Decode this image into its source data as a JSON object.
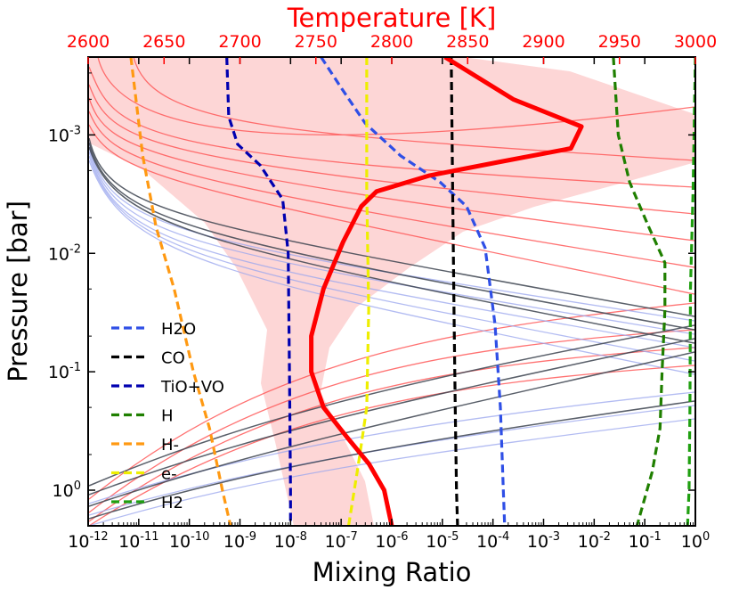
{
  "chart_data": {
    "type": "line",
    "title": "",
    "xlabel": "Mixing Ratio",
    "ylabel": "Pressure [bar]",
    "top_xlabel": "Temperature [K]",
    "xscale": "log",
    "yscale": "log",
    "y_inverted": true,
    "xlim": [
      1e-12,
      1
    ],
    "ylim": [
      2.0,
      0.00022
    ],
    "top_xlim": [
      2600,
      3000
    ],
    "x_ticks": [
      {
        "v": 1e-12,
        "exp": "-12"
      },
      {
        "v": 1e-11,
        "exp": "-11"
      },
      {
        "v": 1e-10,
        "exp": "-10"
      },
      {
        "v": 1e-09,
        "exp": "-9"
      },
      {
        "v": 1e-08,
        "exp": "-8"
      },
      {
        "v": 1e-07,
        "exp": "-7"
      },
      {
        "v": 1e-06,
        "exp": "-6"
      },
      {
        "v": 1e-05,
        "exp": "-5"
      },
      {
        "v": 0.0001,
        "exp": "-4"
      },
      {
        "v": 0.001,
        "exp": "-3"
      },
      {
        "v": 0.01,
        "exp": "-2"
      },
      {
        "v": 0.1,
        "exp": "-1"
      },
      {
        "v": 1,
        "exp": "0"
      }
    ],
    "y_ticks": [
      {
        "v": 0.001,
        "exp": "-3"
      },
      {
        "v": 0.01,
        "exp": "-2"
      },
      {
        "v": 0.1,
        "exp": "-1"
      },
      {
        "v": 1,
        "exp": "0"
      }
    ],
    "top_ticks": [
      "2600",
      "2650",
      "2700",
      "2750",
      "2800",
      "2850",
      "2900",
      "2950",
      "3000"
    ],
    "legend_position": "lower-left",
    "colors": {
      "temperature": "#ff0000",
      "uncertainty_band": "#fdd6d6",
      "H2O": "#2f4fe6",
      "CO": "#000000",
      "TiO+VO": "#0000b0",
      "H": "#1f7f00",
      "H-": "#ff9912",
      "e-": "#eeee00",
      "H2": "#1f9f10",
      "red_profiles": "#ff5a5a",
      "dark_profiles": "#3d4450",
      "blue_profiles": "#9aa6ee"
    },
    "series": [
      {
        "name": "H2O",
        "style": "dashed",
        "points": [
          [
            4e-08,
            0.00022
          ],
          [
            1e-07,
            0.0004
          ],
          [
            3e-07,
            0.0008
          ],
          [
            1.5e-06,
            0.0015
          ],
          [
            9e-06,
            0.0025
          ],
          [
            3e-05,
            0.004
          ],
          [
            7e-05,
            0.009
          ],
          [
            0.00011,
            0.04
          ],
          [
            0.00014,
            0.2
          ],
          [
            0.00016,
            1.0
          ],
          [
            0.00017,
            2.0
          ]
        ]
      },
      {
        "name": "CO",
        "style": "dashed",
        "points": [
          [
            1.5e-05,
            0.00022
          ],
          [
            1.6e-05,
            0.003
          ],
          [
            1.7e-05,
            0.03
          ],
          [
            1.8e-05,
            0.2
          ],
          [
            1.9e-05,
            1.0
          ],
          [
            2e-05,
            2.0
          ]
        ]
      },
      {
        "name": "TiO+VO",
        "style": "dashed",
        "points": [
          [
            5.5e-10,
            0.00022
          ],
          [
            6e-10,
            0.0007
          ],
          [
            9e-10,
            0.0012
          ],
          [
            2.5e-09,
            0.0018
          ],
          [
            7e-09,
            0.0035
          ],
          [
            9e-09,
            0.01
          ],
          [
            9.5e-09,
            0.1
          ],
          [
            1e-08,
            1.0
          ],
          [
            1e-08,
            2.0
          ]
        ]
      },
      {
        "name": "H",
        "style": "dashed",
        "points": [
          [
            0.024,
            0.00022
          ],
          [
            0.03,
            0.001
          ],
          [
            0.05,
            0.0025
          ],
          [
            0.12,
            0.006
          ],
          [
            0.25,
            0.012
          ],
          [
            0.25,
            0.03
          ],
          [
            0.22,
            0.1
          ],
          [
            0.2,
            0.3
          ],
          [
            0.14,
            0.7
          ],
          [
            0.07,
            2.0
          ]
        ]
      },
      {
        "name": "H-",
        "style": "dashed",
        "points": [
          [
            7e-12,
            0.00022
          ],
          [
            1.2e-11,
            0.0015
          ],
          [
            2.2e-11,
            0.006
          ],
          [
            5e-11,
            0.02
          ],
          [
            1.2e-10,
            0.1
          ],
          [
            2.5e-10,
            0.3
          ],
          [
            4.5e-10,
            1.0
          ],
          [
            6.5e-10,
            2.0
          ]
        ]
      },
      {
        "name": "e-",
        "style": "dashed",
        "points": [
          [
            3.2e-07,
            0.00022
          ],
          [
            3.2e-07,
            0.003
          ],
          [
            3.5e-07,
            0.03
          ],
          [
            3.2e-07,
            0.2
          ],
          [
            2.2e-07,
            0.6
          ],
          [
            1.4e-07,
            2.0
          ]
        ]
      },
      {
        "name": "H2",
        "style": "dashed",
        "points": [
          [
            1.0,
            0.00022
          ],
          [
            0.9,
            0.003
          ],
          [
            0.8,
            0.02
          ],
          [
            0.78,
            0.2
          ],
          [
            0.75,
            1.0
          ],
          [
            0.7,
            2.0
          ]
        ]
      }
    ],
    "temperature_profile": {
      "name": "Temperature",
      "axis": "top",
      "points": [
        [
          2835,
          0.00022
        ],
        [
          2880,
          0.0005
        ],
        [
          2925,
          0.00085
        ],
        [
          2918,
          0.0013
        ],
        [
          2870,
          0.0017
        ],
        [
          2825,
          0.0022
        ],
        [
          2790,
          0.003
        ],
        [
          2780,
          0.004
        ],
        [
          2768,
          0.008
        ],
        [
          2755,
          0.02
        ],
        [
          2747,
          0.05
        ],
        [
          2747,
          0.1
        ],
        [
          2755,
          0.2
        ],
        [
          2770,
          0.35
        ],
        [
          2785,
          0.6
        ],
        [
          2795,
          1.0
        ],
        [
          2800,
          2.0
        ]
      ]
    },
    "legend": [
      {
        "label": "H2O",
        "series": "H2O"
      },
      {
        "label": "CO",
        "series": "CO"
      },
      {
        "label": "TiO+VO",
        "series": "TiO+VO"
      },
      {
        "label": "H",
        "series": "H"
      },
      {
        "label": "H-",
        "series": "H-"
      },
      {
        "label": "e-",
        "series": "e-"
      },
      {
        "label": "H2",
        "series": "H2"
      }
    ]
  }
}
